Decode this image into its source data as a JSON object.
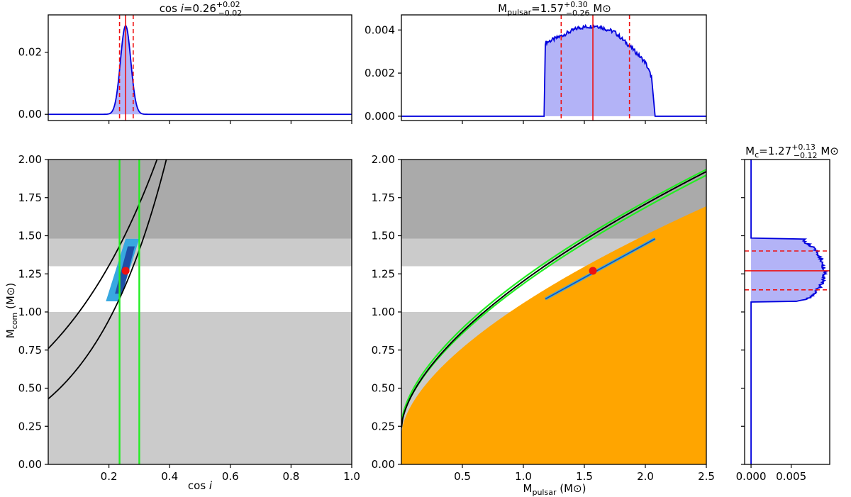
{
  "colors": {
    "dark_grey": "#aaaaaa",
    "light_grey": "#cbcbcb",
    "physical_limit": "#ffa500",
    "posterior": "#0000dd",
    "posterior_fill": "#b3b3f7",
    "marker": "#ee1111",
    "constraint_green": "#22ee22",
    "constraint_black": "#000000",
    "contour_inner": "#1f4ea8",
    "contour_outer": "#38a8e0"
  },
  "chart_data": [
    {
      "id": "cosi_hist",
      "type": "area",
      "title": "cos i=0.26+0.02−0.02",
      "title_parts": {
        "label": "cos",
        "var": "i",
        "value": "=0.26",
        "sup": "+0.02",
        "sub": "−0.02",
        "unit": ""
      },
      "xlim": [
        0.0,
        1.0
      ],
      "ylim": [
        -0.002,
        0.032
      ],
      "yticks": [
        "0.00",
        "0.02"
      ],
      "ytick_values": [
        0.0,
        0.02
      ],
      "xticks_values": [
        0.2,
        0.4,
        0.6,
        0.8,
        1.0
      ],
      "median": 0.255,
      "interval": [
        0.235,
        0.28
      ],
      "peak": {
        "center": 0.255,
        "sigma": 0.017,
        "height": 0.0285
      }
    },
    {
      "id": "mpulsar_hist",
      "type": "area",
      "title": "Mpulsar=1.57+0.30−0.26 M⊙",
      "title_parts": {
        "label": "M",
        "label_sub": "pulsar",
        "value": "=1.57",
        "sup": "+0.30",
        "sub": "−0.26",
        "unit": "M⊙"
      },
      "xlim": [
        0.0,
        2.5
      ],
      "ylim": [
        -0.0002,
        0.0047
      ],
      "yticks": [
        "0.000",
        "0.002",
        "0.004"
      ],
      "ytick_values": [
        0.0,
        0.002,
        0.004
      ],
      "xticks_values": [
        0.5,
        1.0,
        1.5,
        2.0,
        2.5
      ],
      "support": [
        1.18,
        2.08
      ],
      "profile_x": [
        1.18,
        1.3,
        1.45,
        1.6,
        1.75,
        1.9,
        2.0,
        2.06,
        2.08
      ],
      "profile_y": [
        0.0034,
        0.0037,
        0.0041,
        0.0042,
        0.0039,
        0.0031,
        0.0025,
        0.0017,
        0.0
      ],
      "median": 1.57,
      "interval": [
        1.31,
        1.87
      ]
    },
    {
      "id": "cosi_mcom",
      "type": "scatter",
      "xlabel": "cos i",
      "ylabel": "Mcom (M⊙)",
      "xlim": [
        0.0,
        1.0
      ],
      "ylim": [
        0.0,
        2.0
      ],
      "xticks": [
        "0.2",
        "0.4",
        "0.6",
        "0.8",
        "1.0"
      ],
      "xtick_values": [
        0.2,
        0.4,
        0.6,
        0.8,
        1.0
      ],
      "yticks": [
        "0.00",
        "0.25",
        "0.50",
        "0.75",
        "1.00",
        "1.25",
        "1.50",
        "1.75",
        "2.00"
      ],
      "ytick_values": [
        0.0,
        0.25,
        0.5,
        0.75,
        1.0,
        1.25,
        1.5,
        1.75,
        2.0
      ],
      "bands": [
        {
          "y": [
            1.48,
            2.0
          ],
          "color": "dark_grey"
        },
        {
          "y": [
            1.3,
            1.48
          ],
          "color": "light_grey"
        },
        {
          "y": [
            0.0,
            1.0
          ],
          "color": "light_grey"
        }
      ],
      "green_vlines": [
        0.235,
        0.3
      ],
      "black_curves": [
        {
          "y0": 0.76,
          "k": 2.7
        },
        {
          "y0": 0.43,
          "k": 3.95
        }
      ],
      "contour_outer": [
        [
          0.19,
          1.07
        ],
        [
          0.235,
          1.07
        ],
        [
          0.3,
          1.48
        ],
        [
          0.255,
          1.48
        ]
      ],
      "contour_inner": [
        [
          0.22,
          1.12
        ],
        [
          0.245,
          1.12
        ],
        [
          0.285,
          1.43
        ],
        [
          0.262,
          1.43
        ]
      ],
      "point": [
        0.255,
        1.27
      ]
    },
    {
      "id": "mpulsar_mcom",
      "type": "scatter",
      "xlabel": "Mpulsar (M⊙)",
      "ylabel": "",
      "xlim": [
        0.0,
        2.5
      ],
      "ylim": [
        0.0,
        2.0
      ],
      "xticks": [
        "0.5",
        "1.0",
        "1.5",
        "2.0",
        "2.5"
      ],
      "xtick_values": [
        0.5,
        1.0,
        1.5,
        2.0,
        2.5
      ],
      "yticks": [
        "0.00",
        "0.25",
        "0.50",
        "0.75",
        "1.00",
        "1.25",
        "1.50",
        "1.75",
        "2.00"
      ],
      "ytick_values": [
        0.0,
        0.25,
        0.5,
        0.75,
        1.0,
        1.25,
        1.5,
        1.75,
        2.0
      ],
      "bands": [
        {
          "y": [
            1.48,
            2.0
          ],
          "color": "dark_grey"
        },
        {
          "y": [
            1.3,
            1.48
          ],
          "color": "light_grey"
        },
        {
          "y": [
            0.0,
            1.0
          ],
          "color": "light_grey"
        }
      ],
      "orange_region": {
        "y0": 0.2,
        "k": 0.858,
        "p": 0.605
      },
      "black_curves": [
        {
          "y0": 0.24,
          "k": 0.962,
          "p": 0.609
        }
      ],
      "green_curves": [
        {
          "y0": 0.25,
          "k": 0.935,
          "p": 0.618
        },
        {
          "y0": 0.26,
          "k": 0.962,
          "p": 0.605
        }
      ],
      "contour_segment": [
        [
          1.18,
          1.085
        ],
        [
          2.08,
          1.48
        ]
      ],
      "point": [
        1.57,
        1.27
      ]
    },
    {
      "id": "mc_hist",
      "type": "area",
      "orientation": "horizontal",
      "title": "Mc=1.27+0.13−0.12 M⊙",
      "title_parts": {
        "label": "M",
        "label_sub": "c",
        "value": "=1.27",
        "sup": "+0.13",
        "sub": "−0.12",
        "unit": "M⊙"
      },
      "xlim": [
        -0.0008,
        0.0098
      ],
      "ylim": [
        0.0,
        2.0
      ],
      "xticks": [
        "0.000",
        "0.005"
      ],
      "xtick_values": [
        0.0,
        0.005
      ],
      "support": [
        1.065,
        1.485
      ],
      "profile_y": [
        1.065,
        1.09,
        1.12,
        1.16,
        1.2,
        1.25,
        1.29,
        1.33,
        1.37,
        1.41,
        1.44,
        1.46,
        1.485
      ],
      "profile_x": [
        0.0055,
        0.0071,
        0.0079,
        0.0085,
        0.0089,
        0.0092,
        0.0091,
        0.0089,
        0.0085,
        0.008,
        0.0073,
        0.0066,
        0.0065
      ],
      "median": 1.27,
      "interval": [
        1.145,
        1.4
      ]
    }
  ]
}
